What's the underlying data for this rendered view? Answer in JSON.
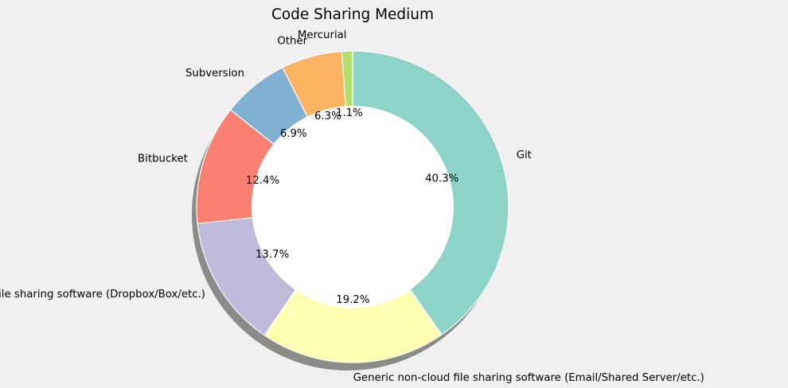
{
  "colors": {
    "figure_background": "#f0f0f0",
    "shadow": "#8a8c89",
    "slice_edge": "#ffffff",
    "center_hole": "#ffffff"
  },
  "chart_data": {
    "type": "pie",
    "variant": "donut",
    "title": "Code Sharing Medium",
    "start_angle_deg": 90,
    "direction": "clockwise",
    "shadow": true,
    "legend": "none",
    "slices": [
      {
        "label": "Git",
        "value": 40.3,
        "pct_label": "40.3%",
        "color": "#8dd3c7"
      },
      {
        "label": "Generic non-cloud file sharing software (Email/Shared Server/etc.)",
        "value": 19.2,
        "pct_label": "19.2%",
        "color": "#ffffb3"
      },
      {
        "label": "Generic cloud file sharing software (Dropbox/Box/etc.)",
        "value": 13.7,
        "pct_label": "13.7%",
        "color": "#bebada"
      },
      {
        "label": "Bitbucket",
        "value": 12.4,
        "pct_label": "12.4%",
        "color": "#fb8072"
      },
      {
        "label": "Subversion",
        "value": 6.9,
        "pct_label": "6.9%",
        "color": "#80b1d3"
      },
      {
        "label": "Other",
        "value": 6.3,
        "pct_label": "6.3%",
        "color": "#fdb462"
      },
      {
        "label": "Mercurial",
        "value": 1.1,
        "pct_label": "1.1%",
        "color": "#b3de69"
      }
    ]
  }
}
